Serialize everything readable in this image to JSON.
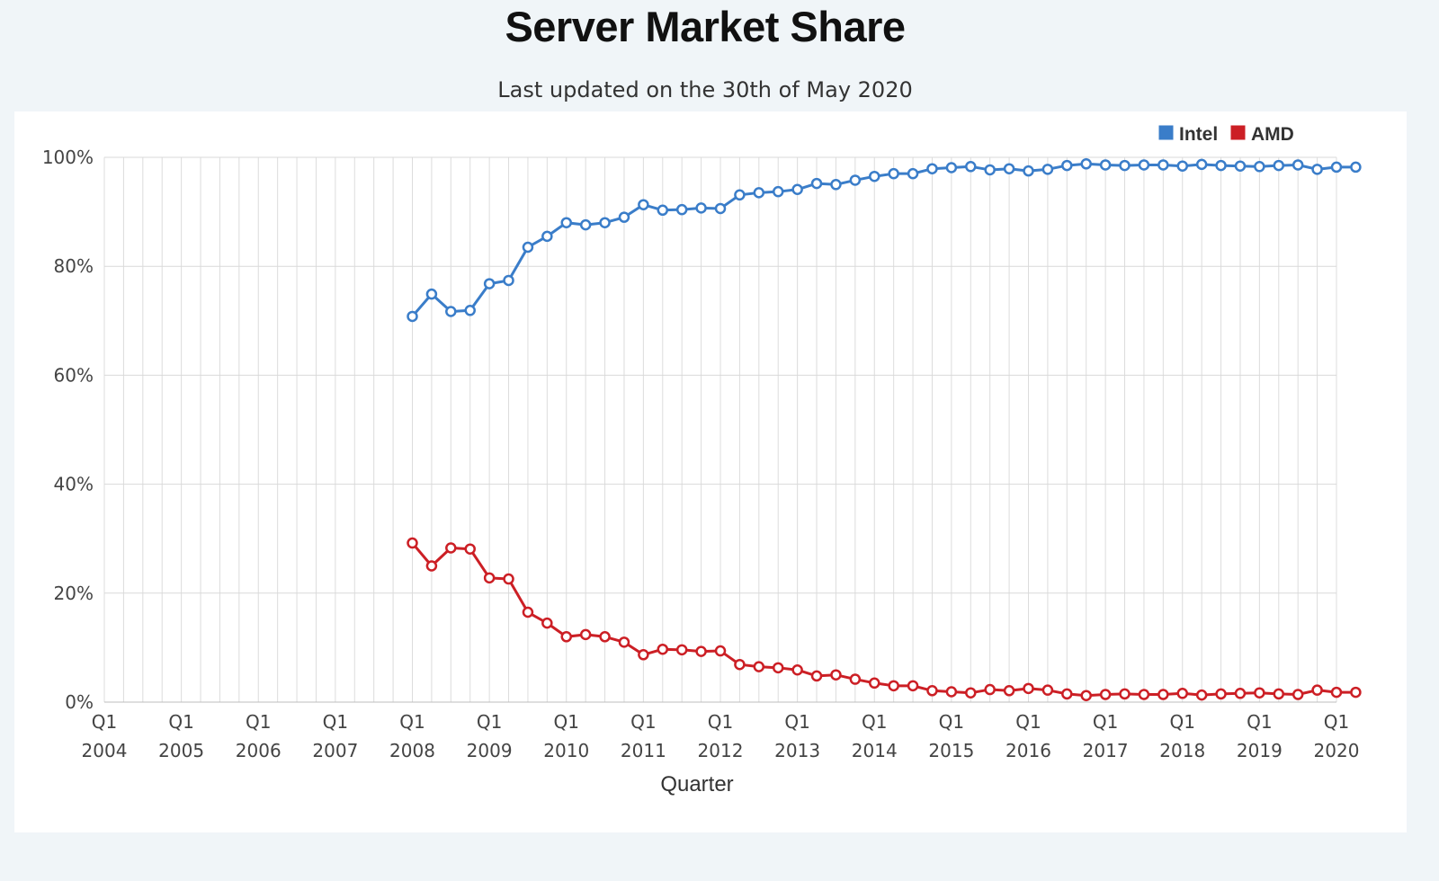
{
  "chart_data": {
    "type": "line",
    "title": "Server Market Share",
    "subtitle": "Last updated on the 30th of May 2020",
    "xlabel": "Quarter",
    "ylabel": "",
    "ylim": [
      0,
      100
    ],
    "yticks": [
      "0%",
      "20%",
      "40%",
      "60%",
      "80%",
      "100%"
    ],
    "ytick_values": [
      0,
      20,
      40,
      60,
      80,
      100
    ],
    "n_quarters": 65,
    "first_quarter": "Q1 2004",
    "xtick_labels": [
      {
        "q": "Q1",
        "year": "2004"
      },
      {
        "q": "Q1",
        "year": "2005"
      },
      {
        "q": "Q1",
        "year": "2006"
      },
      {
        "q": "Q1",
        "year": "2007"
      },
      {
        "q": "Q1",
        "year": "2008"
      },
      {
        "q": "Q1",
        "year": "2009"
      },
      {
        "q": "Q1",
        "year": "2010"
      },
      {
        "q": "Q1",
        "year": "2011"
      },
      {
        "q": "Q1",
        "year": "2012"
      },
      {
        "q": "Q1",
        "year": "2013"
      },
      {
        "q": "Q1",
        "year": "2014"
      },
      {
        "q": "Q1",
        "year": "2015"
      },
      {
        "q": "Q1",
        "year": "2016"
      },
      {
        "q": "Q1",
        "year": "2017"
      },
      {
        "q": "Q1",
        "year": "2018"
      },
      {
        "q": "Q1",
        "year": "2019"
      },
      {
        "q": "Q1",
        "year": "2020"
      }
    ],
    "grid": true,
    "legend_position": "top-right",
    "series": [
      {
        "name": "Intel",
        "color": "#3a7dc9",
        "start_index": 16,
        "values": [
          70.8,
          74.9,
          71.7,
          71.9,
          76.8,
          77.4,
          83.5,
          85.5,
          88.0,
          87.6,
          88.0,
          89.0,
          91.3,
          90.3,
          90.4,
          90.7,
          90.6,
          93.1,
          93.5,
          93.7,
          94.1,
          95.2,
          95.0,
          95.8,
          96.5,
          97.0,
          97.0,
          97.9,
          98.1,
          98.3,
          97.7,
          97.9,
          97.5,
          97.8,
          98.5,
          98.8,
          98.6,
          98.5,
          98.6,
          98.6,
          98.4,
          98.7,
          98.5,
          98.4,
          98.3,
          98.5,
          98.6,
          97.8,
          98.2,
          98.2
        ]
      },
      {
        "name": "AMD",
        "color": "#cc1f25",
        "start_index": 16,
        "values": [
          29.2,
          25.0,
          28.3,
          28.1,
          22.8,
          22.6,
          16.5,
          14.5,
          12.0,
          12.4,
          12.0,
          11.0,
          8.7,
          9.7,
          9.6,
          9.3,
          9.4,
          6.9,
          6.5,
          6.3,
          5.9,
          4.8,
          5.0,
          4.2,
          3.5,
          3.0,
          3.0,
          2.1,
          1.9,
          1.7,
          2.3,
          2.1,
          2.5,
          2.2,
          1.5,
          1.2,
          1.4,
          1.5,
          1.4,
          1.4,
          1.6,
          1.3,
          1.5,
          1.6,
          1.7,
          1.5,
          1.4,
          2.2,
          1.8,
          1.8
        ]
      }
    ]
  }
}
